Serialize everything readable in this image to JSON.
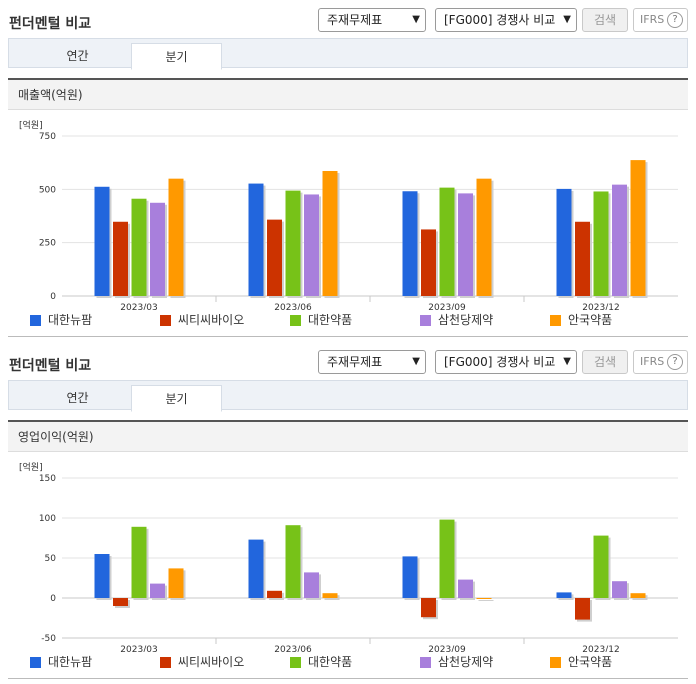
{
  "panels": [
    {
      "title": "펀더멘털 비교",
      "type_select": "주재무제표",
      "company_select": "[FG000] 경쟁사 비교",
      "search_label": "검색",
      "ifrs_label": "IFRS",
      "help_glyph": "?",
      "tabs": [
        "연간",
        "분기"
      ],
      "active_tab": "분기",
      "metric_label": "매출액(억원)"
    },
    {
      "title": "펀더멘털 비교",
      "type_select": "주재무제표",
      "company_select": "[FG000] 경쟁사 비교",
      "search_label": "검색",
      "ifrs_label": "IFRS",
      "help_glyph": "?",
      "tabs": [
        "연간",
        "분기"
      ],
      "active_tab": "분기",
      "metric_label": "영업이익(억원)"
    }
  ],
  "colors": [
    "#2266dd",
    "#cc3300",
    "#77c218",
    "#a87fdc",
    "#ff9900"
  ],
  "chart_data": [
    {
      "type": "bar",
      "unit": "[억원]",
      "categories": [
        "2023/03",
        "2023/06",
        "2023/09",
        "2023/12"
      ],
      "ylim": [
        0,
        750
      ],
      "yticks": [
        0,
        250,
        500,
        750
      ],
      "grid": true,
      "legend": "bottom",
      "series": [
        {
          "name": "대한뉴팜",
          "values": [
            512,
            527,
            491,
            502
          ]
        },
        {
          "name": "씨티씨바이오",
          "values": [
            348,
            358,
            312,
            348
          ]
        },
        {
          "name": "대한약품",
          "values": [
            456,
            494,
            508,
            490
          ]
        },
        {
          "name": "삼천당제약",
          "values": [
            437,
            476,
            481,
            522
          ]
        },
        {
          "name": "안국약품",
          "values": [
            550,
            586,
            550,
            637
          ]
        }
      ]
    },
    {
      "type": "bar",
      "unit": "[억원]",
      "categories": [
        "2023/03",
        "2023/06",
        "2023/09",
        "2023/12"
      ],
      "ylim": [
        -50,
        150
      ],
      "yticks": [
        -50,
        0,
        50,
        100,
        150
      ],
      "grid": true,
      "legend": "bottom",
      "series": [
        {
          "name": "대한뉴팜",
          "values": [
            55,
            73,
            52,
            7
          ]
        },
        {
          "name": "씨티씨바이오",
          "values": [
            -10,
            9,
            -24,
            -27
          ]
        },
        {
          "name": "대한약품",
          "values": [
            89,
            91,
            98,
            78
          ]
        },
        {
          "name": "삼천당제약",
          "values": [
            18,
            32,
            23,
            21
          ]
        },
        {
          "name": "안국약품",
          "values": [
            37,
            6,
            0,
            6
          ]
        }
      ]
    }
  ]
}
